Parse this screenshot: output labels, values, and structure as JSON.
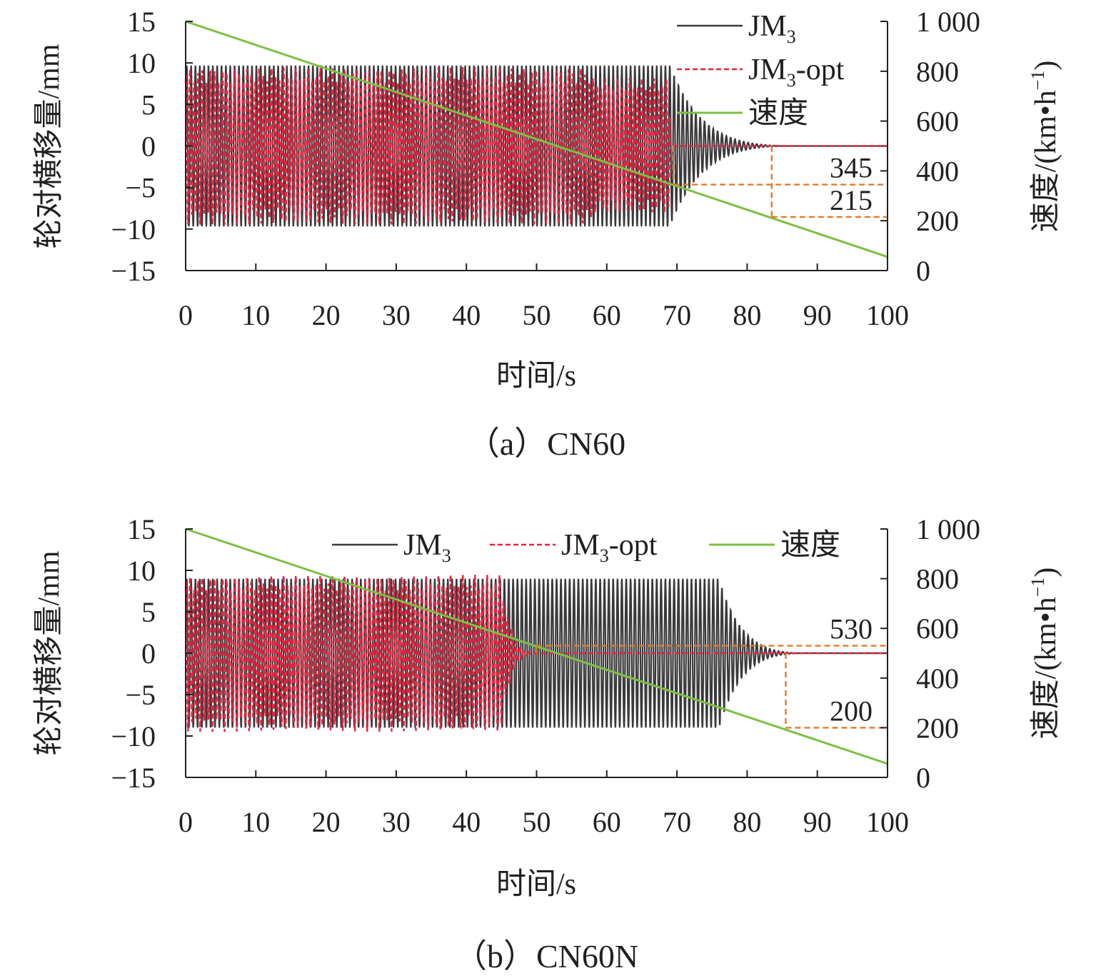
{
  "colors": {
    "jm3": "#3a3a3c",
    "jm3opt": "#e8233f",
    "speed": "#7ac142",
    "marker": "#e07b27",
    "axis": "#231f20"
  },
  "chart_data": [
    {
      "type": "line",
      "caption": "（a）CN60",
      "xlabel": "时间/s",
      "ylabel": "轮对横移量/mm",
      "y2label_prefix": "速度/(km•h",
      "y2label_sup": "−1",
      "y2label_suffix": ")",
      "xlim": [
        0,
        100
      ],
      "ylim": [
        -15,
        15
      ],
      "y2lim": [
        0,
        1000
      ],
      "xticks": [
        "0",
        "10",
        "20",
        "30",
        "40",
        "50",
        "60",
        "70",
        "80",
        "90",
        "100"
      ],
      "yticks": [
        "15",
        "10",
        "5",
        "0",
        "−5",
        "−10",
        "−15"
      ],
      "y2ticks": [
        "1 000",
        "800",
        "600",
        "400",
        "200",
        "0"
      ],
      "legend": {
        "placement": "top-right-vertical",
        "entries": [
          {
            "text": "JM",
            "sub": "3",
            "suffix": ""
          },
          {
            "text": "JM",
            "sub": "3",
            "suffix": "-opt"
          },
          {
            "text": "速度",
            "sub": "",
            "suffix": ""
          }
        ]
      },
      "series": [
        {
          "name": "JM3",
          "kind": "oscillation",
          "amplitude": 9.7,
          "sustain_until": 69,
          "decay_end": 86,
          "axis": "left"
        },
        {
          "name": "JM3-opt",
          "kind": "oscillation",
          "amplitude": 9.5,
          "sustain_until": 58,
          "lower_amplitude": 8.2,
          "stop": 69,
          "axis": "left"
        },
        {
          "name": "速度",
          "kind": "linear",
          "x": [
            0,
            100
          ],
          "y": [
            1000,
            55
          ],
          "axis": "right"
        }
      ],
      "annotations": [
        {
          "label": "345",
          "speed": 345,
          "time": 69.5
        },
        {
          "label": "215",
          "speed": 215,
          "time": 83.5
        }
      ]
    },
    {
      "type": "line",
      "caption": "（b）CN60N",
      "xlabel": "时间/s",
      "ylabel": "轮对横移量/mm",
      "y2label_prefix": "速度/(km•h",
      "y2label_sup": "−1",
      "y2label_suffix": ")",
      "xlim": [
        0,
        100
      ],
      "ylim": [
        -15,
        15
      ],
      "y2lim": [
        0,
        1000
      ],
      "xticks": [
        "0",
        "10",
        "20",
        "30",
        "40",
        "50",
        "60",
        "70",
        "80",
        "90",
        "100"
      ],
      "yticks": [
        "15",
        "10",
        "5",
        "0",
        "−5",
        "−10",
        "−15"
      ],
      "y2ticks": [
        "1 000",
        "800",
        "600",
        "400",
        "200",
        "0"
      ],
      "legend": {
        "placement": "top-horizontal",
        "entries": [
          {
            "text": "JM",
            "sub": "3",
            "suffix": ""
          },
          {
            "text": "JM",
            "sub": "3",
            "suffix": "-opt"
          },
          {
            "text": "速度",
            "sub": "",
            "suffix": ""
          }
        ]
      },
      "series": [
        {
          "name": "JM3",
          "kind": "oscillation",
          "amplitude": 9.0,
          "sustain_until": 76,
          "decay_end": 88,
          "axis": "left"
        },
        {
          "name": "JM3-opt",
          "kind": "oscillation",
          "amplitude": 9.5,
          "sustain_until": 45,
          "decay_end": 50,
          "axis": "left"
        },
        {
          "name": "速度",
          "kind": "linear",
          "x": [
            0,
            100
          ],
          "y": [
            1000,
            55
          ],
          "axis": "right"
        }
      ],
      "annotations": [
        {
          "label": "530",
          "speed": 530,
          "time": 50
        },
        {
          "label": "200",
          "speed": 200,
          "time": 85.5
        }
      ]
    }
  ]
}
